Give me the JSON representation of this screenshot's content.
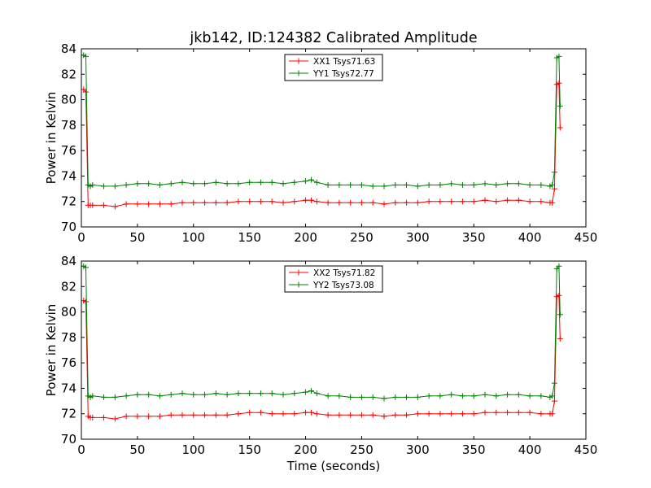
{
  "figure_title": "jkb142, ID:124382 Calibrated Amplitude",
  "colors": {
    "xx": "#ff0000",
    "yy": "#008000",
    "axes": "#000000",
    "background": "#ffffff"
  },
  "chart_data": [
    {
      "type": "line",
      "title": "jkb142, ID:124382 Calibrated Amplitude",
      "xlabel": "",
      "ylabel": "Power in Kelvin",
      "xlim": [
        0,
        450
      ],
      "ylim": [
        70,
        84
      ],
      "xticks": [
        0,
        50,
        100,
        150,
        200,
        250,
        300,
        350,
        400,
        450
      ],
      "yticks": [
        70,
        72,
        74,
        76,
        78,
        80,
        82,
        84
      ],
      "grid": false,
      "legend_position": "top-center",
      "markers": "plus",
      "series": [
        {
          "name": "XX1 Tsys71.63",
          "color": "#ff0000",
          "x": [
            0,
            2,
            4,
            6,
            8,
            10,
            20,
            30,
            40,
            50,
            60,
            70,
            80,
            90,
            100,
            110,
            120,
            130,
            140,
            150,
            160,
            170,
            180,
            190,
            200,
            205,
            210,
            220,
            230,
            240,
            250,
            260,
            270,
            280,
            290,
            300,
            310,
            320,
            330,
            340,
            350,
            360,
            370,
            380,
            390,
            400,
            410,
            418,
            420,
            422,
            424,
            426,
            427
          ],
          "y": [
            80.8,
            80.8,
            80.6,
            71.7,
            71.7,
            71.7,
            71.7,
            71.6,
            71.8,
            71.8,
            71.8,
            71.8,
            71.8,
            71.9,
            71.9,
            71.9,
            71.9,
            71.9,
            72.0,
            72.0,
            72.0,
            72.0,
            71.9,
            72.0,
            72.1,
            72.1,
            72.0,
            71.9,
            71.9,
            71.9,
            71.9,
            71.9,
            71.8,
            71.9,
            71.9,
            71.9,
            72.0,
            72.0,
            72.0,
            72.0,
            72.0,
            72.1,
            72.0,
            72.1,
            72.1,
            72.0,
            72.0,
            71.9,
            71.9,
            73.0,
            81.2,
            81.3,
            77.8
          ]
        },
        {
          "name": "YY1 Tsys72.77",
          "color": "#008000",
          "x": [
            0,
            2,
            4,
            6,
            8,
            10,
            20,
            30,
            40,
            50,
            60,
            70,
            80,
            90,
            100,
            110,
            120,
            130,
            140,
            150,
            160,
            170,
            180,
            190,
            200,
            205,
            210,
            220,
            230,
            240,
            250,
            260,
            270,
            280,
            290,
            300,
            310,
            320,
            330,
            340,
            350,
            360,
            370,
            380,
            390,
            400,
            410,
            418,
            420,
            422,
            424,
            426,
            427
          ],
          "y": [
            83.5,
            83.5,
            83.4,
            73.3,
            73.2,
            73.3,
            73.2,
            73.2,
            73.3,
            73.4,
            73.4,
            73.3,
            73.4,
            73.5,
            73.4,
            73.4,
            73.5,
            73.4,
            73.4,
            73.5,
            73.5,
            73.5,
            73.4,
            73.5,
            73.6,
            73.7,
            73.5,
            73.3,
            73.3,
            73.3,
            73.3,
            73.2,
            73.2,
            73.3,
            73.3,
            73.2,
            73.3,
            73.3,
            73.4,
            73.3,
            73.3,
            73.4,
            73.3,
            73.4,
            73.4,
            73.3,
            73.3,
            73.2,
            73.3,
            74.3,
            83.3,
            83.4,
            79.5
          ]
        }
      ]
    },
    {
      "type": "line",
      "title": "",
      "xlabel": "Time (seconds)",
      "ylabel": "Power in Kelvin",
      "xlim": [
        0,
        450
      ],
      "ylim": [
        70,
        84
      ],
      "xticks": [
        0,
        50,
        100,
        150,
        200,
        250,
        300,
        350,
        400,
        450
      ],
      "yticks": [
        70,
        72,
        74,
        76,
        78,
        80,
        82,
        84
      ],
      "grid": false,
      "legend_position": "top-center",
      "markers": "plus",
      "series": [
        {
          "name": "XX2 Tsys71.82",
          "color": "#ff0000",
          "x": [
            0,
            2,
            4,
            6,
            8,
            10,
            20,
            30,
            40,
            50,
            60,
            70,
            80,
            90,
            100,
            110,
            120,
            130,
            140,
            150,
            160,
            170,
            180,
            190,
            200,
            205,
            210,
            220,
            230,
            240,
            250,
            260,
            270,
            280,
            290,
            300,
            310,
            320,
            330,
            340,
            350,
            360,
            370,
            380,
            390,
            400,
            410,
            418,
            420,
            422,
            424,
            426,
            427
          ],
          "y": [
            80.9,
            80.9,
            80.8,
            71.8,
            71.7,
            71.7,
            71.7,
            71.6,
            71.8,
            71.8,
            71.8,
            71.8,
            71.9,
            71.9,
            71.9,
            71.9,
            71.9,
            71.9,
            72.0,
            72.1,
            72.1,
            72.0,
            72.0,
            72.0,
            72.1,
            72.1,
            72.0,
            71.9,
            71.9,
            71.9,
            71.9,
            71.9,
            71.8,
            71.9,
            71.9,
            72.0,
            72.0,
            72.0,
            72.0,
            72.0,
            72.0,
            72.1,
            72.1,
            72.1,
            72.1,
            72.1,
            72.0,
            72.0,
            72.0,
            73.0,
            81.2,
            81.3,
            77.9
          ]
        },
        {
          "name": "YY2 Tsys73.08",
          "color": "#008000",
          "x": [
            0,
            2,
            4,
            6,
            8,
            10,
            20,
            30,
            40,
            50,
            60,
            70,
            80,
            90,
            100,
            110,
            120,
            130,
            140,
            150,
            160,
            170,
            180,
            190,
            200,
            205,
            210,
            220,
            230,
            240,
            250,
            260,
            270,
            280,
            290,
            300,
            310,
            320,
            330,
            340,
            350,
            360,
            370,
            380,
            390,
            400,
            410,
            418,
            420,
            422,
            424,
            426,
            427
          ],
          "y": [
            83.6,
            83.6,
            83.5,
            73.4,
            73.3,
            73.4,
            73.3,
            73.3,
            73.4,
            73.5,
            73.5,
            73.4,
            73.5,
            73.6,
            73.5,
            73.5,
            73.6,
            73.5,
            73.6,
            73.6,
            73.6,
            73.6,
            73.5,
            73.6,
            73.7,
            73.8,
            73.6,
            73.4,
            73.4,
            73.3,
            73.3,
            73.3,
            73.2,
            73.3,
            73.3,
            73.3,
            73.4,
            73.4,
            73.5,
            73.4,
            73.4,
            73.5,
            73.4,
            73.5,
            73.5,
            73.4,
            73.4,
            73.3,
            73.4,
            74.4,
            83.4,
            83.6,
            79.8
          ]
        }
      ]
    }
  ]
}
